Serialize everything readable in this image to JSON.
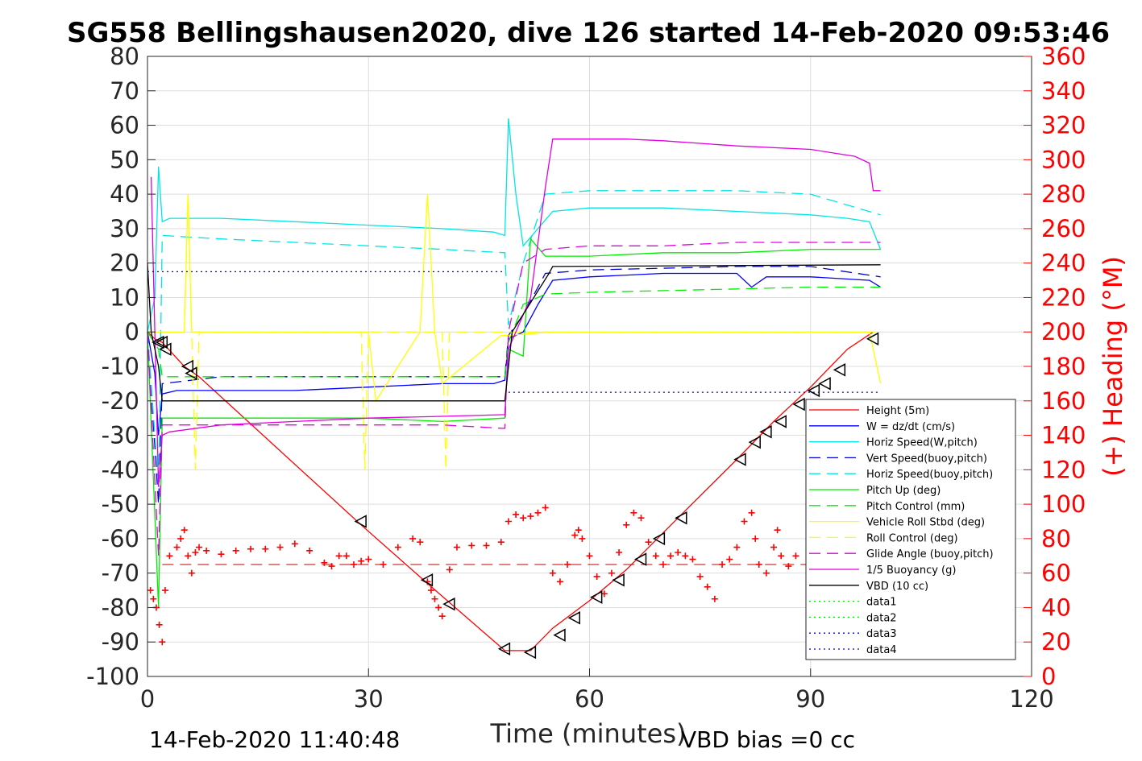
{
  "chart_data": {
    "type": "line",
    "title": "SG558 Bellingshausen2020, dive 126 started 14-Feb-2020 09:53:46",
    "xlabel": "Time (minutes)",
    "ylabel_right": "(+) Heading (°M)",
    "xlim": [
      0,
      120
    ],
    "ylim": [
      -100,
      80
    ],
    "ylim_right": [
      0,
      360
    ],
    "x_ticks": [
      "0",
      "30",
      "60",
      "90",
      "120"
    ],
    "y_ticks": [
      "80",
      "70",
      "60",
      "50",
      "40",
      "30",
      "20",
      "10",
      "0",
      "-10",
      "-20",
      "-30",
      "-40",
      "-50",
      "-60",
      "-70",
      "-80",
      "-90",
      "-100"
    ],
    "y_right_ticks": [
      "360",
      "340",
      "320",
      "300",
      "280",
      "260",
      "240",
      "220",
      "200",
      "180",
      "160",
      "140",
      "120",
      "100",
      "80",
      "60",
      "40",
      "20",
      "0"
    ],
    "grid": true,
    "legend_position": "lower-right",
    "footer_left": "14-Feb-2020 11:40:48",
    "footer_right": "VBD bias =0 cc",
    "series": [
      {
        "name": "Height (5m)",
        "color": "#ff0000",
        "dash": "solid",
        "x": [
          0,
          1,
          2,
          5,
          7,
          29,
          38,
          48.5,
          52,
          55,
          60,
          65,
          72,
          80,
          85,
          90,
          95,
          98.5
        ],
        "y": [
          0,
          -2,
          -3,
          -10,
          -13,
          -56,
          -73,
          -92.5,
          -92.5,
          -86,
          -78,
          -69,
          -54,
          -37,
          -26,
          -16,
          -5,
          0
        ]
      },
      {
        "name": "W = dz/dt (cm/s)",
        "color": "#0000ff",
        "dash": "solid",
        "x": [
          0,
          1,
          1.5,
          2,
          4,
          10,
          20,
          30,
          40,
          47,
          48.5,
          49,
          51,
          53,
          55,
          60,
          70,
          80,
          82,
          84,
          90,
          98,
          99.5
        ],
        "y": [
          0,
          -12,
          -30,
          -18,
          -17,
          -17,
          -17,
          -16,
          -15,
          -15,
          -14,
          -2,
          0,
          8,
          15,
          16,
          17,
          17,
          13,
          16,
          16,
          15,
          13
        ]
      },
      {
        "name": "Horiz Speed(W,pitch)",
        "color": "#00e5e5",
        "dash": "solid",
        "x": [
          0,
          1,
          1.5,
          2,
          3,
          10,
          20,
          30,
          40,
          47,
          48.5,
          49,
          50,
          51,
          53,
          55,
          60,
          70,
          80,
          90,
          95,
          98,
          99.5
        ],
        "y": [
          0,
          10,
          48,
          32,
          33,
          33,
          32,
          31,
          30,
          29,
          28,
          62,
          40,
          25,
          30,
          35,
          36,
          36,
          35,
          34,
          33,
          32,
          24
        ]
      },
      {
        "name": "Vert Speed(buoy,pitch)",
        "color": "#0000cc",
        "dash": "dashed",
        "x": [
          0,
          1.5,
          2,
          10,
          20,
          30,
          40,
          48.5,
          49,
          51,
          54,
          60,
          70,
          80,
          90,
          99.5
        ],
        "y": [
          0,
          -50,
          -15,
          -13,
          -13,
          -13,
          -13,
          -13,
          -1,
          5,
          17,
          18,
          18.5,
          19,
          19,
          16
        ]
      },
      {
        "name": "Horiz Speed(buoy,pitch)",
        "color": "#00e5e5",
        "dash": "dashed",
        "x": [
          0,
          1.5,
          2,
          10,
          20,
          30,
          40,
          48.5,
          49,
          51,
          54,
          60,
          70,
          80,
          90,
          99.5
        ],
        "y": [
          0,
          -45,
          28,
          27,
          26,
          25,
          24,
          23,
          2,
          20,
          40,
          41,
          41,
          41,
          40,
          34
        ]
      },
      {
        "name": "Pitch Up (deg)",
        "color": "#00ee00",
        "dash": "solid",
        "x": [
          0,
          1.5,
          2,
          10,
          20,
          30,
          40,
          48.5,
          49,
          51,
          52,
          54,
          60,
          70,
          80,
          90,
          99.5
        ],
        "y": [
          0,
          -80,
          -25,
          -25,
          -25,
          -25,
          -26,
          -25,
          -5,
          -7,
          27,
          22,
          22,
          23,
          23,
          24,
          24
        ]
      },
      {
        "name": "Pitch Control (mm)",
        "color": "#00ee00",
        "dash": "dashed",
        "x": [
          0,
          1.5,
          2,
          10,
          20,
          30,
          40,
          48.5,
          49,
          51,
          54,
          60,
          70,
          80,
          90,
          99.5
        ],
        "y": [
          0,
          -5,
          -13,
          -13,
          -13,
          -13,
          -13,
          -13,
          -3,
          8,
          11,
          11.5,
          12,
          12.5,
          13,
          13
        ]
      },
      {
        "name": "Vehicle Roll Stbd (deg)",
        "color": "#ffff00",
        "dash": "solid",
        "x": [
          0,
          2,
          5,
          5.5,
          6,
          7,
          30,
          31,
          37,
          38,
          39,
          40,
          48,
          49,
          55,
          60,
          65,
          70,
          80,
          90,
          98,
          99.5
        ],
        "y": [
          0,
          0,
          0,
          40,
          0,
          0,
          0,
          -20,
          0,
          40,
          0,
          -15,
          -1,
          -1,
          0,
          0,
          0,
          0,
          0,
          0,
          0,
          -15
        ]
      },
      {
        "name": "Roll Control (deg)",
        "color": "#ffff00",
        "dash": "dashed",
        "x": [
          0,
          2,
          5,
          5.5,
          6,
          6.5,
          7,
          29,
          29.5,
          30,
          40,
          40.5,
          41,
          49,
          55,
          99.5
        ],
        "y": [
          0,
          0,
          0,
          40,
          0,
          -40,
          0,
          0,
          -40,
          0,
          0,
          -40,
          0,
          0,
          0,
          0
        ]
      },
      {
        "name": "Glide Angle (buoy,pitch)",
        "color": "#e000e0",
        "dash": "dashed",
        "x": [
          0,
          1.5,
          2,
          10,
          20,
          30,
          40,
          48.5,
          49,
          51,
          54,
          60,
          70,
          80,
          90,
          99.5
        ],
        "y": [
          0,
          -65,
          -27,
          -27,
          -27,
          -27,
          -27,
          -28,
          0,
          20,
          24,
          25,
          25,
          26,
          26,
          26
        ]
      },
      {
        "name": "1/5 Buoyancy (g)",
        "color": "#e000e0",
        "dash": "solid",
        "x": [
          0.5,
          1,
          1.5,
          2,
          3,
          10,
          20,
          30,
          40,
          48.5,
          49,
          52,
          54,
          55,
          60,
          65,
          70,
          80,
          90,
          96,
          98,
          98.5,
          99.5
        ],
        "y": [
          45,
          0,
          -45,
          -30,
          -29,
          -27,
          -26,
          -25,
          -24.5,
          -24,
          -5,
          10,
          42,
          56,
          56,
          56,
          55.5,
          54,
          53,
          51,
          49,
          41,
          41
        ]
      },
      {
        "name": "VBD (10 cc)",
        "color": "#000000",
        "dash": "solid",
        "x": [
          0,
          0.5,
          1.5,
          2,
          48.5,
          49.5,
          54.5,
          55,
          99.5
        ],
        "y": [
          20,
          0,
          -10,
          -20,
          -20,
          0,
          17,
          19,
          19.5
        ]
      },
      {
        "name": "data1",
        "color": "#00dd00",
        "dash": "dotted",
        "x": [],
        "y": []
      },
      {
        "name": "data2",
        "color": "#00dd00",
        "dash": "dotted",
        "x": [],
        "y": []
      },
      {
        "name": "data3",
        "color": "#0000cc",
        "dash": "dotted",
        "x": [
          0,
          48.5
        ],
        "y": [
          17.5,
          17.5
        ]
      },
      {
        "name": "data4",
        "color": "#0000cc",
        "dash": "dotted",
        "x": [
          49,
          99.5
        ],
        "y": [
          -17.5,
          -17.5
        ]
      }
    ],
    "heading": {
      "color": "#ff0000",
      "marker": "+",
      "axis": "right",
      "x": [
        0.4,
        0.8,
        1.2,
        1.6,
        2.0,
        2.4,
        3,
        4,
        4.5,
        5,
        5.5,
        6,
        6.5,
        7,
        8,
        10,
        12,
        14,
        16,
        18,
        20,
        22,
        24,
        25,
        26,
        27,
        28,
        29,
        30,
        32,
        34,
        36,
        37,
        38,
        38.5,
        39,
        39.5,
        40,
        41,
        42,
        44,
        46,
        48,
        49,
        50,
        51,
        52,
        53,
        54,
        55,
        56,
        57,
        58,
        58.5,
        59,
        60,
        61,
        62,
        63,
        64,
        65,
        66,
        67,
        68,
        69,
        70,
        71,
        72,
        73,
        74,
        75,
        76,
        77,
        78,
        79,
        80,
        81,
        82,
        82.5,
        83,
        84,
        85,
        85.5,
        86,
        87,
        88
      ],
      "y": [
        50,
        45,
        40,
        30,
        20,
        50,
        70,
        75,
        80,
        85,
        70,
        60,
        72,
        75,
        73,
        71,
        73,
        74,
        74,
        75,
        77,
        73,
        66,
        64,
        70,
        70,
        65,
        67,
        68,
        65,
        75,
        80,
        78,
        55,
        50,
        45,
        40,
        35,
        62,
        75,
        76,
        76,
        78,
        90,
        94,
        92,
        93,
        95,
        98,
        60,
        55,
        65,
        82,
        85,
        80,
        70,
        58,
        48,
        60,
        72,
        88,
        95,
        92,
        78,
        70,
        65,
        70,
        72,
        70,
        68,
        58,
        52,
        45,
        65,
        68,
        75,
        90,
        95,
        80,
        65,
        60,
        75,
        85,
        70,
        64,
        70
      ]
    },
    "heading_ref": {
      "color": "#c00000",
      "dash": "dashed",
      "axis": "right",
      "x": [
        2,
        99.5
      ],
      "y": [
        65,
        65
      ]
    },
    "markers": {
      "color": "#000000",
      "shape": "triangle",
      "x": [
        1.5,
        2,
        2.5,
        5.5,
        6,
        29,
        38,
        41,
        48.5,
        52,
        56,
        58,
        61,
        64,
        67,
        69.5,
        72.5,
        80.5,
        82.5,
        84,
        86,
        88.5,
        90.5,
        92,
        94,
        98.5
      ],
      "y": [
        -3,
        -3,
        -5,
        -10,
        -12,
        -55,
        -72,
        -79,
        -92,
        -93,
        -88,
        -83,
        -77,
        -72,
        -66,
        -60,
        -54,
        -37,
        -32,
        -29,
        -26,
        -21,
        -17,
        -15,
        -11,
        -2
      ]
    }
  }
}
